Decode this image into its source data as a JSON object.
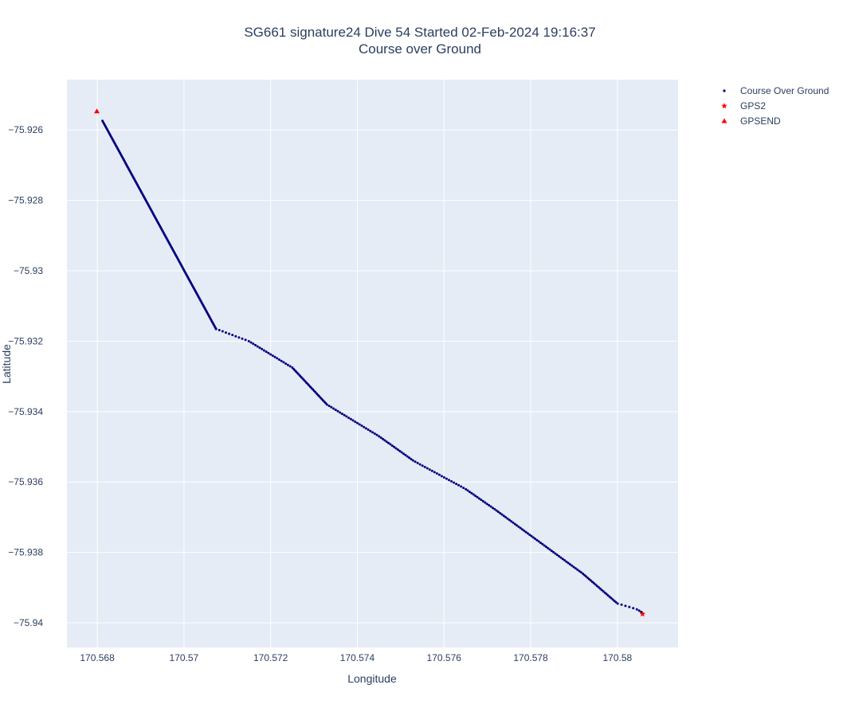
{
  "chart_data": {
    "type": "scatter",
    "title": "SG661 signature24 Dive 54 Started 02-Feb-2024 19:16:37",
    "subtitle": "Course over Ground",
    "xlabel": "Longitude",
    "ylabel": "Latitude",
    "xlim": [
      170.5673,
      170.5814
    ],
    "ylim": [
      -75.9407,
      -75.92457
    ],
    "x_ticks": [
      170.568,
      170.57,
      170.572,
      170.574,
      170.576,
      170.578,
      170.58
    ],
    "x_tick_labels": [
      "170.568",
      "170.57",
      "170.572",
      "170.574",
      "170.576",
      "170.578",
      "170.58"
    ],
    "y_ticks": [
      -75.926,
      -75.928,
      -75.93,
      -75.932,
      -75.934,
      -75.936,
      -75.938,
      -75.94
    ],
    "y_tick_labels": [
      "−75.926",
      "−75.928",
      "−75.93",
      "−75.932",
      "−75.934",
      "−75.936",
      "−75.938",
      "−75.94"
    ],
    "grid": true,
    "legend_position": "top-right",
    "series": [
      {
        "name": "Course Over Ground",
        "color": "#00007f",
        "marker": "dot",
        "path_dense": [
          [
            170.56812,
            -75.92574
          ],
          [
            170.57074,
            -75.93165
          ]
        ],
        "path_dense_count": 150,
        "path_sparse": [
          [
            170.57074,
            -75.93165
          ],
          [
            170.5715,
            -75.932
          ],
          [
            170.5725,
            -75.93275
          ],
          [
            170.5733,
            -75.9338
          ],
          [
            170.5745,
            -75.9347
          ],
          [
            170.5753,
            -75.9354
          ],
          [
            170.5765,
            -75.9362
          ],
          [
            170.5772,
            -75.9368
          ],
          [
            170.5782,
            -75.9377
          ],
          [
            170.5792,
            -75.9386
          ],
          [
            170.58,
            -75.93945
          ],
          [
            170.58044,
            -75.93961
          ],
          [
            170.58054,
            -75.93968
          ],
          [
            170.58058,
            -75.93973
          ]
        ],
        "path_sparse_count": 215
      },
      {
        "name": "GPS2",
        "color": "#ff0000",
        "marker": "star",
        "points": [
          [
            170.58058,
            -75.93975
          ]
        ]
      },
      {
        "name": "GPSEND",
        "color": "#ff0000",
        "marker": "triangle-up",
        "points": [
          [
            170.56799,
            -75.92547
          ]
        ]
      }
    ]
  }
}
